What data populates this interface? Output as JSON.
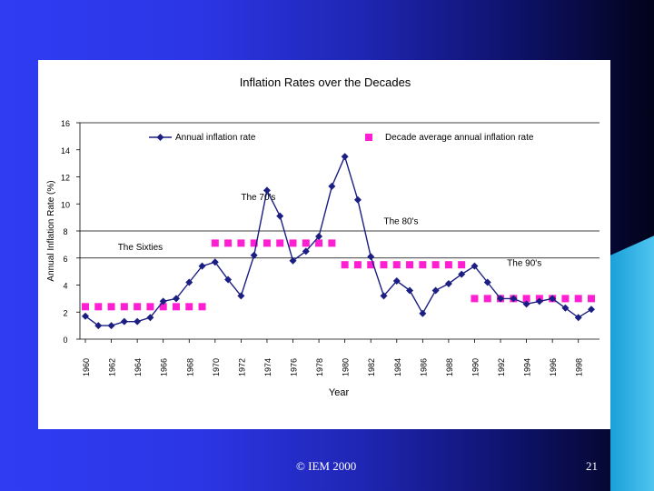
{
  "slide": {
    "copyright": "© IEM 2000",
    "page_number": "21"
  },
  "colors": {
    "background_left": "#2f3cf2",
    "background_right": "#02031a",
    "annual_series": "#1c1f82",
    "decade_series": "#ff1fd2"
  },
  "chart_data": {
    "type": "line",
    "title": "Inflation Rates over the Decades",
    "xlabel": "Year",
    "ylabel": "Annual Inflation Rate (%)",
    "ylim": [
      0,
      16
    ],
    "yticks": [
      "0",
      "2",
      "4",
      "6",
      "8",
      "10",
      "12",
      "14",
      "16"
    ],
    "xticks": [
      "1960",
      "1962",
      "1964",
      "1966",
      "1968",
      "1970",
      "1972",
      "1974",
      "1976",
      "1978",
      "1980",
      "1982",
      "1984",
      "1986",
      "1988",
      "1990",
      "1992",
      "1994",
      "1996",
      "1998"
    ],
    "grid": "horizontal lines at 8 and 6",
    "legend_position": "top",
    "series": [
      {
        "name": "Annual inflation rate",
        "marker": "diamond",
        "x": [
          1960,
          1961,
          1962,
          1963,
          1964,
          1965,
          1966,
          1967,
          1968,
          1969,
          1970,
          1971,
          1972,
          1973,
          1974,
          1975,
          1976,
          1977,
          1978,
          1979,
          1980,
          1981,
          1982,
          1983,
          1984,
          1985,
          1986,
          1987,
          1988,
          1989,
          1990,
          1991,
          1992,
          1993,
          1994,
          1995,
          1996,
          1997,
          1998,
          1999
        ],
        "values": [
          1.7,
          1.0,
          1.0,
          1.3,
          1.3,
          1.6,
          2.8,
          3.0,
          4.2,
          5.4,
          5.7,
          4.4,
          3.2,
          6.2,
          11.0,
          9.1,
          5.8,
          6.5,
          7.6,
          11.3,
          13.5,
          10.3,
          6.1,
          3.2,
          4.3,
          3.6,
          1.9,
          3.6,
          4.1,
          4.8,
          5.4,
          4.2,
          3.0,
          3.0,
          2.6,
          2.8,
          3.0,
          2.3,
          1.6,
          2.2
        ]
      },
      {
        "name": "Decade average annual inflation rate",
        "marker": "square",
        "segments": [
          {
            "from": 1960,
            "to": 1969,
            "value": 2.4
          },
          {
            "from": 1970,
            "to": 1979,
            "value": 7.1
          },
          {
            "from": 1980,
            "to": 1989,
            "value": 5.5
          },
          {
            "from": 1990,
            "to": 1999,
            "value": 3.0
          }
        ]
      }
    ],
    "annotations": [
      {
        "text": "The Sixties",
        "x": 1962.5,
        "y": 6.6
      },
      {
        "text": "The 70's",
        "x": 1972,
        "y": 10.3
      },
      {
        "text": "The 80's",
        "x": 1983,
        "y": 8.5
      },
      {
        "text": "The 90's",
        "x": 1992.5,
        "y": 5.4
      }
    ]
  }
}
